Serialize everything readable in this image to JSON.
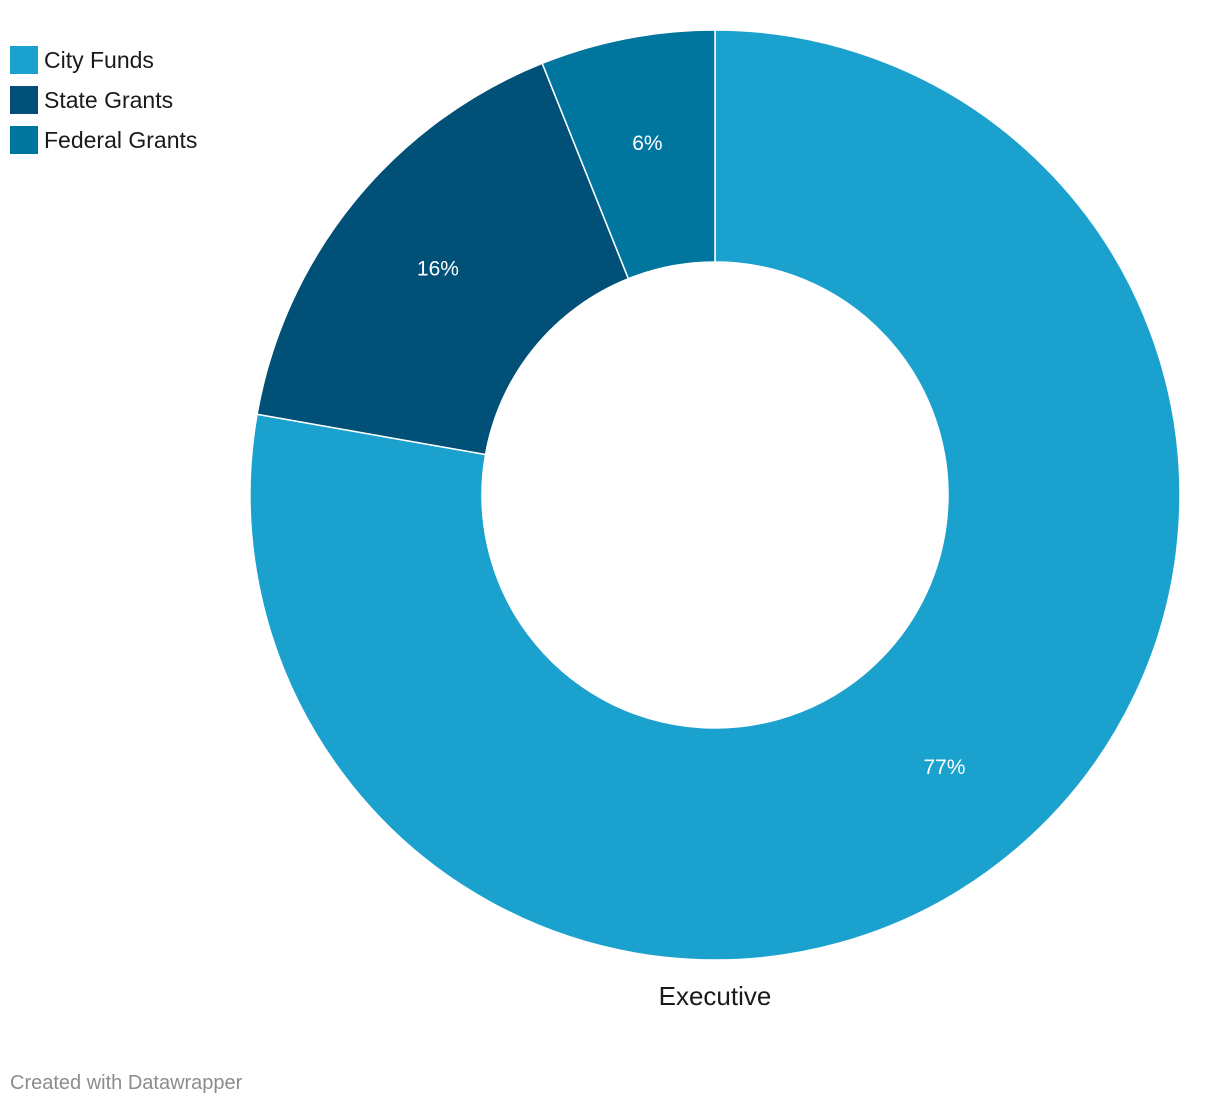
{
  "chart_data": {
    "type": "pie",
    "variant": "donut",
    "title": "",
    "group_label": "Executive",
    "series": [
      {
        "name": "City Funds",
        "value": 77,
        "label": "77%",
        "color": "#1ba1cd"
      },
      {
        "name": "State Grants",
        "value": 16,
        "label": "16%",
        "color": "#005077"
      },
      {
        "name": "Federal Grants",
        "value": 6,
        "label": "6%",
        "color": "#00769f"
      }
    ],
    "legend_position": "top-left"
  },
  "legend": {
    "items": [
      {
        "label": "City Funds",
        "color": "#1ba1cd"
      },
      {
        "label": "State Grants",
        "color": "#005077"
      },
      {
        "label": "Federal Grants",
        "color": "#00769f"
      }
    ]
  },
  "footer": {
    "credit": "Created with Datawrapper"
  }
}
